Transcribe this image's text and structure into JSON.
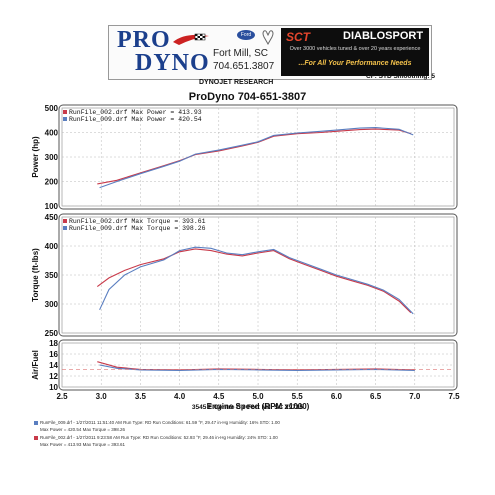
{
  "header": {
    "logo_top": "PRO",
    "logo_bottom": "DYNO",
    "city": "Fort Mill, SC",
    "phone": "704.651.3807",
    "ford_badge": "Ford",
    "sct_logo": "SCT",
    "diablo_logo": "DIABLOSPORT",
    "sct_tagline": "Over 3000 vehicles tuned & over 20 years experience",
    "sct_slogan": "...For All Your Performance Needs",
    "dynojet": "DYNOJET RESEARCH",
    "cf_info": "CF: STD  Smoothing: 5",
    "accent_blue": "#1b3f8c",
    "accent_red": "#e2452c"
  },
  "chart_data": [
    {
      "type": "line",
      "title": "ProDyno 704-651-3807",
      "ylabel": "Power (hp)",
      "ylim": [
        100,
        500
      ],
      "yticks": [
        100,
        200,
        300,
        400,
        500
      ],
      "xlim": [
        2.5,
        7.5
      ],
      "grid": true,
      "legend_position": "top-left",
      "series": [
        {
          "name": "RunFile_002.drf Max Power = 413.93",
          "color": "#c83a4a",
          "x": [
            2.95,
            3.2,
            3.5,
            3.8,
            4.0,
            4.2,
            4.5,
            4.8,
            5.0,
            5.2,
            5.5,
            5.8,
            6.0,
            6.3,
            6.5,
            6.8,
            6.95
          ],
          "y": [
            190,
            205,
            235,
            265,
            285,
            310,
            325,
            345,
            360,
            385,
            395,
            400,
            405,
            412,
            414,
            410,
            395
          ]
        },
        {
          "name": "RunFile_009.drf Max Power = 420.54",
          "color": "#5a7ec0",
          "x": [
            2.98,
            3.2,
            3.5,
            3.8,
            4.0,
            4.2,
            4.5,
            4.8,
            5.0,
            5.2,
            5.5,
            5.8,
            6.0,
            6.3,
            6.5,
            6.8,
            6.98
          ],
          "y": [
            175,
            200,
            232,
            262,
            283,
            312,
            328,
            348,
            362,
            388,
            398,
            405,
            410,
            418,
            420,
            413,
            390
          ]
        }
      ]
    },
    {
      "type": "line",
      "ylabel": "Torque (ft-lbs)",
      "ylim": [
        250,
        450
      ],
      "yticks": [
        250,
        300,
        350,
        400,
        450
      ],
      "xlim": [
        2.5,
        7.5
      ],
      "grid": true,
      "legend_position": "top-left",
      "series": [
        {
          "name": "RunFile_002.drf Max Torque = 393.61",
          "color": "#c83a4a",
          "x": [
            2.95,
            3.1,
            3.3,
            3.5,
            3.8,
            4.0,
            4.2,
            4.4,
            4.6,
            4.8,
            5.0,
            5.2,
            5.4,
            5.6,
            5.8,
            6.0,
            6.2,
            6.4,
            6.6,
            6.8,
            6.95
          ],
          "y": [
            330,
            345,
            358,
            368,
            378,
            390,
            395,
            392,
            386,
            383,
            388,
            392,
            378,
            368,
            358,
            348,
            340,
            332,
            322,
            305,
            285
          ]
        },
        {
          "name": "RunFile_009.drf Max Torque = 398.26",
          "color": "#5a7ec0",
          "x": [
            2.98,
            3.1,
            3.3,
            3.5,
            3.8,
            4.0,
            4.2,
            4.4,
            4.6,
            4.8,
            5.0,
            5.2,
            5.4,
            5.6,
            5.8,
            6.0,
            6.2,
            6.4,
            6.6,
            6.8,
            6.98
          ],
          "y": [
            290,
            325,
            350,
            364,
            376,
            392,
            398,
            396,
            388,
            385,
            390,
            394,
            380,
            370,
            360,
            350,
            342,
            334,
            324,
            308,
            283
          ]
        }
      ]
    },
    {
      "type": "line",
      "ylabel": "Air/Fuel",
      "ylim": [
        10,
        18
      ],
      "yticks": [
        10,
        12,
        14,
        16,
        18
      ],
      "xlim": [
        2.5,
        7.5
      ],
      "xticks": [
        2.5,
        3.0,
        3.5,
        4.0,
        4.5,
        5.0,
        5.5,
        6.0,
        6.5,
        7.0,
        7.5
      ],
      "xlabel": "Engine Speed (RPM x1000)",
      "grid": true,
      "series": [
        {
          "name": "RunFile_002.drf",
          "color": "#c83a4a",
          "x": [
            2.95,
            3.2,
            3.5,
            4.0,
            4.5,
            5.0,
            5.5,
            6.0,
            6.5,
            7.0
          ],
          "y": [
            14.6,
            13.6,
            13.2,
            13.1,
            13.3,
            13.2,
            13.1,
            13.2,
            13.3,
            13.1
          ]
        },
        {
          "name": "RunFile_009.drf",
          "color": "#5a7ec0",
          "x": [
            2.98,
            3.2,
            3.5,
            4.0,
            4.5,
            5.0,
            5.5,
            6.0,
            6.5,
            7.0
          ],
          "y": [
            14.0,
            13.4,
            13.1,
            13.0,
            13.2,
            13.1,
            13.0,
            13.1,
            13.2,
            13.0
          ]
        }
      ]
    }
  ],
  "footer": {
    "address": "3545 F Centre Cir Fort Mill SC 29715",
    "run1_line1": "RunFile_009.drf - 1/27/2011 11:51:40 AM  Run Type: RD  Run Conditions: 61.59 °F, 29.47 in-Hg  Humidity: 16%  STD: 1.00",
    "run1_line2": "Max Power = 420.54  Max Torque = 398.26",
    "run2_line1": "RunFile_002.drf - 1/27/2011 9:23:58 AM  Run Type: RD  Run Conditions: 52.93 °F, 29.46 in-Hg  Humidity: 24%  STD: 1.00",
    "run2_line2": "Max Power = 413.93  Max Torque = 393.61"
  }
}
